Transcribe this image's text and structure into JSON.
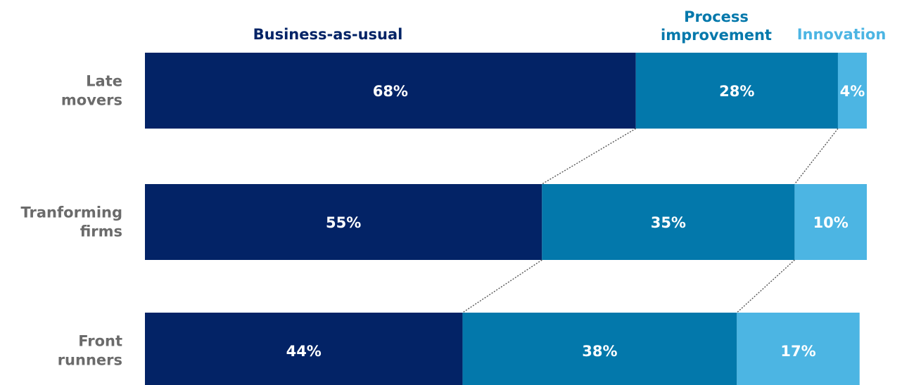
{
  "chart_data": {
    "type": "bar",
    "orientation": "horizontal",
    "stacked": true,
    "unit": "%",
    "categories": [
      [
        "Late",
        "movers"
      ],
      [
        "Tranforming",
        "firms"
      ],
      [
        "Front",
        "runners"
      ]
    ],
    "series": [
      {
        "name": "Business-as-usual",
        "name_lines": [
          "Business-as-usual"
        ],
        "color": "#032366",
        "values": [
          68,
          55,
          44
        ]
      },
      {
        "name": "Process improvement",
        "name_lines": [
          "Process",
          "improvement"
        ],
        "color": "#0378ab",
        "values": [
          28,
          35,
          38
        ]
      },
      {
        "name": "Innovation",
        "name_lines": [
          "Innovation"
        ],
        "color": "#4cb5e3",
        "values": [
          4,
          10,
          17
        ]
      }
    ],
    "value_labels": [
      [
        "68%",
        "28%",
        "4%"
      ],
      [
        "55%",
        "35%",
        "10%"
      ],
      [
        "44%",
        "38%",
        "17%"
      ]
    ],
    "xlim": [
      0,
      100
    ],
    "connectors": "dotted",
    "legend": "top",
    "grid": false
  }
}
